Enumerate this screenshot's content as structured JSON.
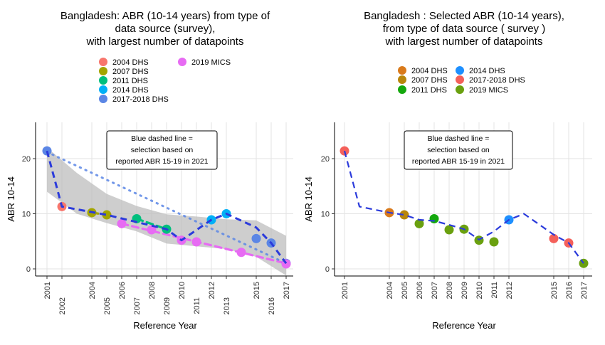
{
  "chart_data": [
    {
      "type": "scatter",
      "title_lines": [
        "Bangladesh: ABR (10-14 years) from type of",
        "data source (survey),",
        "with largest number of datapoints"
      ],
      "xlabel": "Reference Year",
      "ylabel": "ABR 10-14",
      "ylim": [
        0,
        22.5
      ],
      "yticks": [
        0,
        10,
        20
      ],
      "xticks": [
        "2001",
        "2002",
        "2004",
        "2005",
        "2006",
        "2007",
        "2008",
        "2009",
        "2010",
        "2011",
        "2012",
        "2013",
        "2015",
        "2016",
        "2017"
      ],
      "grid": true,
      "legend_position": "top",
      "note_lines": [
        "Blue dashed line =",
        "selection based on",
        "reported ABR 15-19 in 2021"
      ],
      "series": [
        {
          "name": "2004 DHS",
          "color": "#F8766D",
          "x": [],
          "y": []
        },
        {
          "name": "2007 DHS",
          "color": "#A3A500",
          "x": [
            2004,
            2005
          ],
          "y": [
            10.2,
            9.8
          ]
        },
        {
          "name": "2011 DHS",
          "color": "#00BF7D",
          "x": [
            2007,
            2009
          ],
          "y": [
            9.1,
            7.2
          ]
        },
        {
          "name": "2014 DHS",
          "color": "#00B0F6",
          "x": [
            2013
          ],
          "y": [
            10.0
          ]
        },
        {
          "name": "2017-2018 DHS",
          "color": "#5B86E5",
          "x": [
            2001,
            2015,
            2016,
            2017
          ],
          "y": [
            21.4,
            5.5,
            4.7,
            1.0
          ]
        },
        {
          "name": "2019 MICS",
          "color": "#E76BF3",
          "x": [
            2006,
            2008,
            2010,
            2011,
            2014,
            2017
          ],
          "y": [
            8.2,
            7.1,
            5.2,
            4.9,
            3.0,
            0.9
          ]
        }
      ],
      "extra_points": [
        {
          "x": 2002,
          "y": 11.3,
          "color": "#F8766D"
        },
        {
          "x": 2012,
          "y": 8.9,
          "color": "#00B0F6"
        }
      ],
      "selection_line": {
        "color": "#2B3BDB",
        "x": [
          2001,
          2002,
          2005,
          2009,
          2010,
          2012,
          2013,
          2015,
          2016,
          2017
        ],
        "y": [
          21.4,
          11.3,
          9.8,
          7.2,
          5.2,
          8.9,
          10.0,
          7.5,
          4.7,
          1.0
        ]
      },
      "fit_lines": [
        {
          "color": "#A3A500",
          "x": [
            2004,
            2005
          ],
          "y": [
            10.2,
            9.8
          ]
        },
        {
          "color": "#00BF7D",
          "x": [
            2007,
            2009
          ],
          "y": [
            9.1,
            7.2
          ]
        },
        {
          "color": "#E76BF3",
          "x": [
            2006,
            2017
          ],
          "y": [
            8.2,
            1.0
          ]
        },
        {
          "color": "#5B86E5",
          "x": [
            2001,
            2017
          ],
          "y": [
            21.2,
            1.0
          ],
          "dotted": true
        }
      ],
      "ribbon": {
        "x": [
          2001,
          2003,
          2005,
          2007,
          2009,
          2011,
          2013,
          2015,
          2017
        ],
        "lower": [
          14.0,
          10.0,
          8.3,
          6.8,
          4.6,
          4.1,
          3.6,
          2.2,
          -1.2
        ],
        "upper": [
          22.0,
          17.4,
          13.6,
          11.4,
          9.9,
          9.5,
          9.0,
          8.8,
          6.0
        ]
      }
    },
    {
      "type": "scatter",
      "title_lines": [
        "Bangladesh : Selected ABR (10-14 years),",
        "from type of data source ( survey )",
        "with largest number of datapoints"
      ],
      "xlabel": "Reference Year",
      "ylabel": "ABR 10-14",
      "ylim": [
        0,
        22.5
      ],
      "yticks": [
        0,
        10,
        20
      ],
      "xticks": [
        "2001",
        "2004",
        "2005",
        "2006",
        "2007",
        "2008",
        "2009",
        "2010",
        "2011",
        "2012",
        "2015",
        "2016",
        "2017"
      ],
      "grid": true,
      "legend_position": "top",
      "note_lines": [
        "Blue dashed line =",
        "selection based on",
        "reported ABR 15-19 in 2021"
      ],
      "series": [
        {
          "name": "2004 DHS",
          "color": "#D97A1B",
          "x": [
            2004
          ],
          "y": [
            10.2
          ]
        },
        {
          "name": "2007 DHS",
          "color": "#B8860B",
          "x": [
            2005
          ],
          "y": [
            9.8
          ]
        },
        {
          "name": "2011 DHS",
          "color": "#14A80D",
          "x": [
            2007
          ],
          "y": [
            9.1
          ]
        },
        {
          "name": "2014 DHS",
          "color": "#1E90FF",
          "x": [
            2012
          ],
          "y": [
            8.9
          ]
        },
        {
          "name": "2017-2018 DHS",
          "color": "#F4605A",
          "x": [
            2001,
            2015,
            2016
          ],
          "y": [
            21.4,
            5.5,
            4.7
          ]
        },
        {
          "name": "2019 MICS",
          "color": "#6AA00F",
          "x": [
            2006,
            2008,
            2009,
            2010,
            2011,
            2017
          ],
          "y": [
            8.2,
            7.1,
            7.2,
            5.2,
            4.9,
            1.0
          ]
        }
      ],
      "selection_line": {
        "color": "#2B3BDB",
        "x": [
          2001,
          2002,
          2004,
          2005,
          2006,
          2007,
          2008,
          2009,
          2010,
          2011,
          2012,
          2013,
          2014,
          2015,
          2016,
          2017
        ],
        "y": [
          21.4,
          11.3,
          10.2,
          9.8,
          8.9,
          8.7,
          8.0,
          7.2,
          5.3,
          6.8,
          8.9,
          10.0,
          8.1,
          6.2,
          4.7,
          1.0
        ]
      }
    }
  ]
}
